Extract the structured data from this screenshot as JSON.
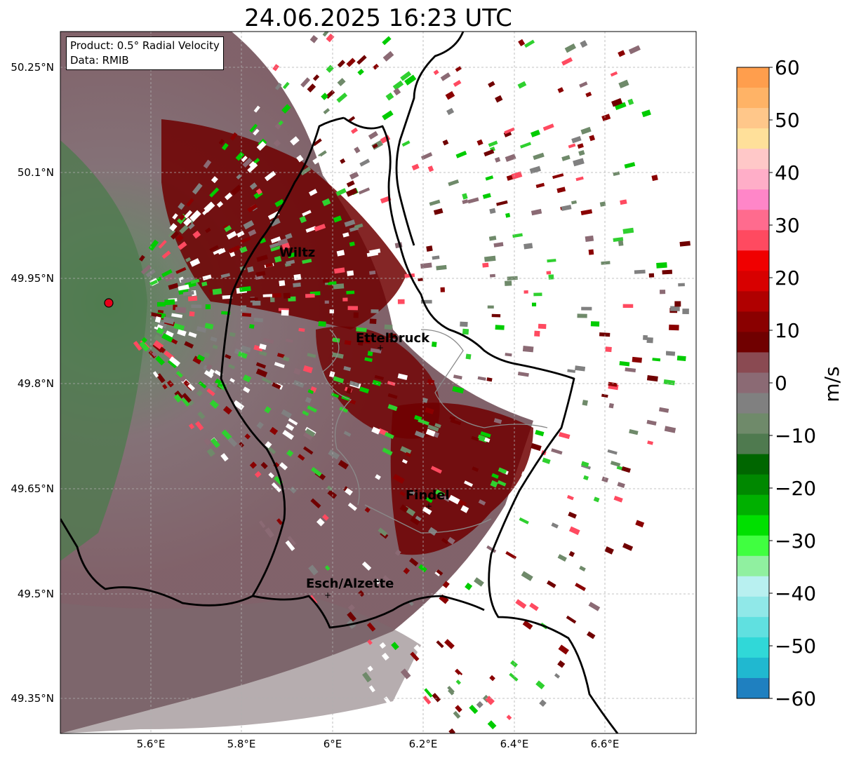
{
  "title": "24.06.2025 16:23 UTC",
  "info": {
    "product": "Product: 0.5° Radial Velocity",
    "data": "Data: RMIB"
  },
  "map": {
    "lat_ticks": [
      "50.25°N",
      "50.1°N",
      "49.95°N",
      "49.8°N",
      "49.65°N",
      "49.5°N",
      "49.35°N"
    ],
    "lon_ticks": [
      "5.6°E",
      "5.8°E",
      "6°E",
      "6.2°E",
      "6.4°E",
      "6.6°E"
    ],
    "cities": [
      "Wiltz",
      "Ettelbruck",
      "Findel",
      "Esch/Alzette"
    ],
    "radar_site_color": "#e8001a"
  },
  "colorbar": {
    "label": "m/s",
    "ticks": [
      "60",
      "50",
      "40",
      "30",
      "20",
      "10",
      "0",
      "−10",
      "−20",
      "−30",
      "−40",
      "−50",
      "−60"
    ],
    "range": [
      -60,
      60
    ],
    "colors": [
      "#ff9e4d",
      "#ffb366",
      "#ffc78a",
      "#ffe09a",
      "#ffc8c8",
      "#ffaec8",
      "#ff86c8",
      "#ff6b8e",
      "#ff4a60",
      "#f00000",
      "#d80000",
      "#b00000",
      "#8a0000",
      "#700000",
      "#8a4a52",
      "#8b6a74",
      "#808080",
      "#6f8a6a",
      "#4f7a4f",
      "#006600",
      "#008800",
      "#00b000",
      "#00e000",
      "#40ff40",
      "#90f0a0",
      "#b8f0f0",
      "#90e8e8",
      "#60e0e0",
      "#30d8d8",
      "#20b8d0",
      "#1f80c0"
    ]
  }
}
